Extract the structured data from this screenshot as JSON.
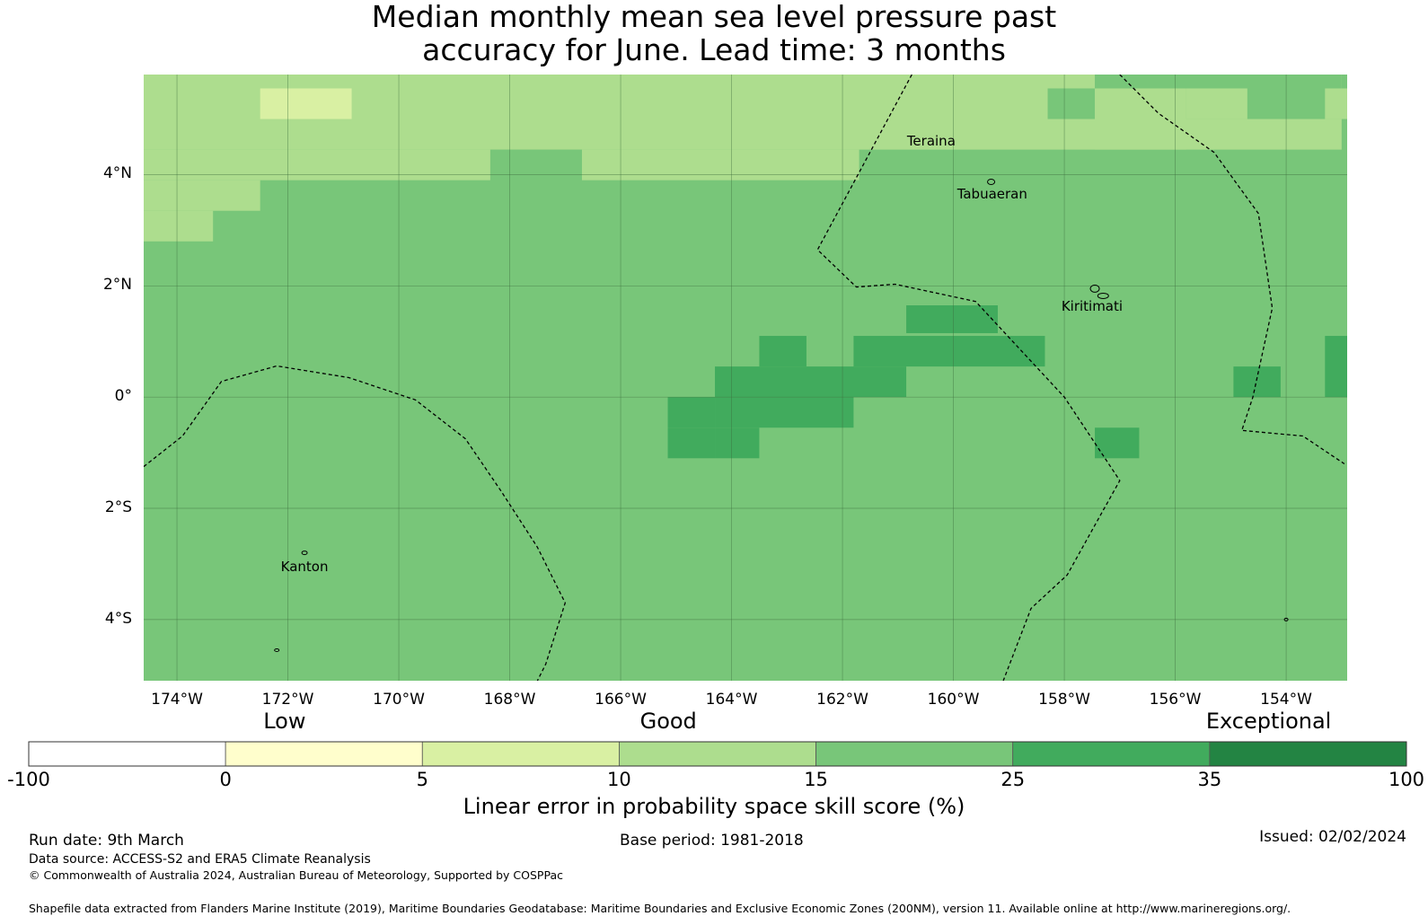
{
  "title_line1": "Median monthly mean sea level pressure past",
  "title_line2": "accuracy for June. Lead time: 3 months",
  "map": {
    "lon_range": [
      -174.6,
      -152.9
    ],
    "lat_range": [
      -5.1,
      5.8
    ],
    "lat_ticks": [
      {
        "value": 4,
        "label": "4°N"
      },
      {
        "value": 2,
        "label": "2°N"
      },
      {
        "value": 0,
        "label": "0°"
      },
      {
        "value": -2,
        "label": "2°S"
      },
      {
        "value": -4,
        "label": "4°S"
      }
    ],
    "lon_ticks": [
      {
        "value": -174,
        "label": "174°W"
      },
      {
        "value": -172,
        "label": "172°W"
      },
      {
        "value": -170,
        "label": "170°W"
      },
      {
        "value": -168,
        "label": "168°W"
      },
      {
        "value": -166,
        "label": "166°W"
      },
      {
        "value": -164,
        "label": "164°W"
      },
      {
        "value": -162,
        "label": "162°W"
      },
      {
        "value": -160,
        "label": "160°W"
      },
      {
        "value": -158,
        "label": "158°W"
      },
      {
        "value": -156,
        "label": "156°W"
      },
      {
        "value": -154,
        "label": "154°W"
      }
    ],
    "places": [
      {
        "name": "Teraina",
        "lon": -160.4,
        "lat": 4.6
      },
      {
        "name": "Tabuaeran",
        "lon": -159.3,
        "lat": 3.65
      },
      {
        "name": "Kiritimati",
        "lon": -157.5,
        "lat": 1.63
      },
      {
        "name": "Kanton",
        "lon": -171.7,
        "lat": -3.05
      }
    ],
    "base_level": "15-25",
    "cells": [
      {
        "lon": [
          -174.6,
          -153.0
        ],
        "lat": [
          4.45,
          5.8
        ],
        "level": "10-15"
      },
      {
        "lon": [
          -158.3,
          -157.45
        ],
        "lat": [
          5.0,
          5.55
        ],
        "level": "15-25"
      },
      {
        "lon": [
          -157.45,
          -153.0
        ],
        "lat": [
          5.0,
          5.8
        ],
        "level": "15-25"
      },
      {
        "lon": [
          -157.45,
          -155.8
        ],
        "lat": [
          4.45,
          5.55
        ],
        "level": "10-15"
      },
      {
        "lon": [
          -155.8,
          -154.7
        ],
        "lat": [
          5.0,
          5.55
        ],
        "level": "10-15"
      },
      {
        "lon": [
          -153.3,
          -152.9
        ],
        "lat": [
          5.0,
          5.55
        ],
        "level": "10-15"
      },
      {
        "lon": [
          -172.5,
          -170.85
        ],
        "lat": [
          5.0,
          5.55
        ],
        "level": "5-10"
      },
      {
        "lon": [
          -174.6,
          -168.35
        ],
        "lat": [
          3.9,
          4.45
        ],
        "level": "10-15"
      },
      {
        "lon": [
          -166.7,
          -161.7
        ],
        "lat": [
          3.9,
          4.45
        ],
        "level": "10-15"
      },
      {
        "lon": [
          -168.35,
          -166.7
        ],
        "lat": [
          3.9,
          4.45
        ],
        "level": "15-25"
      },
      {
        "lon": [
          -174.6,
          -172.5
        ],
        "lat": [
          3.35,
          3.9
        ],
        "level": "10-15"
      },
      {
        "lon": [
          -174.6,
          -173.35
        ],
        "lat": [
          2.8,
          3.35
        ],
        "level": "10-15"
      },
      {
        "lon": [
          -160.85,
          -159.2
        ],
        "lat": [
          1.15,
          1.65
        ],
        "level": "25-35"
      },
      {
        "lon": [
          -163.5,
          -162.65
        ],
        "lat": [
          0.55,
          1.1
        ],
        "level": "25-35"
      },
      {
        "lon": [
          -161.8,
          -158.35
        ],
        "lat": [
          0.55,
          1.1
        ],
        "level": "25-35"
      },
      {
        "lon": [
          -164.3,
          -160.85
        ],
        "lat": [
          0.0,
          0.55
        ],
        "level": "25-35"
      },
      {
        "lon": [
          -165.15,
          -164.3
        ],
        "lat": [
          -0.55,
          0.0
        ],
        "level": "25-35"
      },
      {
        "lon": [
          -164.3,
          -161.8
        ],
        "lat": [
          -0.55,
          0.0
        ],
        "level": "25-35"
      },
      {
        "lon": [
          -164.3,
          -165.15
        ],
        "lat": [
          -1.1,
          -0.55
        ],
        "level": "25-35"
      },
      {
        "lon": [
          -164.3,
          -163.5
        ],
        "lat": [
          -1.1,
          -0.55
        ],
        "level": "25-35"
      },
      {
        "lon": [
          -157.45,
          -156.65
        ],
        "lat": [
          -1.1,
          -0.55
        ],
        "level": "25-35"
      },
      {
        "lon": [
          -154.95,
          -154.1
        ],
        "lat": [
          0.0,
          0.55
        ],
        "level": "25-35"
      },
      {
        "lon": [
          -153.3,
          -152.9
        ],
        "lat": [
          0.0,
          1.1
        ],
        "level": "25-35"
      }
    ],
    "eez_boundaries": [
      [
        [
          -160.75,
          5.8
        ],
        [
          -162.45,
          2.65
        ],
        [
          -161.75,
          1.98
        ],
        [
          -161.05,
          2.03
        ],
        [
          -159.6,
          1.72
        ],
        [
          -158.0,
          0.0
        ],
        [
          -157.0,
          -1.5
        ],
        [
          -157.95,
          -3.2
        ],
        [
          -158.6,
          -3.8
        ],
        [
          -159.1,
          -5.1
        ]
      ],
      [
        [
          -157.0,
          5.8
        ],
        [
          -156.3,
          5.1
        ],
        [
          -155.3,
          4.4
        ],
        [
          -154.5,
          3.3
        ],
        [
          -154.25,
          1.6
        ],
        [
          -154.6,
          0.0
        ],
        [
          -154.8,
          -0.6
        ],
        [
          -153.7,
          -0.7
        ],
        [
          -152.95,
          -1.2
        ]
      ],
      [
        [
          -174.6,
          -1.25
        ],
        [
          -173.9,
          -0.7
        ],
        [
          -173.2,
          0.28
        ],
        [
          -172.2,
          0.56
        ],
        [
          -170.9,
          0.35
        ],
        [
          -169.7,
          -0.05
        ],
        [
          -168.8,
          -0.75
        ],
        [
          -168.15,
          -1.7
        ],
        [
          -167.5,
          -2.7
        ],
        [
          -167.0,
          -3.7
        ],
        [
          -167.35,
          -4.8
        ],
        [
          -167.5,
          -5.1
        ]
      ]
    ]
  },
  "colorbar": {
    "categories": [
      {
        "label": "Low",
        "value": 1.3
      },
      {
        "label": "Good",
        "value": 3.25
      },
      {
        "label": "Exceptional",
        "value": 6.3
      }
    ],
    "tick_labels": [
      "-100",
      "0",
      "5",
      "10",
      "15",
      "25",
      "35",
      "100"
    ],
    "bins": [
      {
        "range": "-100 to 0",
        "color": "#ffffff"
      },
      {
        "range": "0 to 5",
        "color": "#fffecc"
      },
      {
        "range": "5 to 10",
        "color": "#d9f0a3"
      },
      {
        "range": "10 to 15",
        "color": "#addd8e"
      },
      {
        "range": "15 to 25",
        "color": "#78c679"
      },
      {
        "range": "25 to 35",
        "color": "#41ab5d"
      },
      {
        "range": "35 to 100",
        "color": "#238443"
      }
    ],
    "label": "Linear error in probability space skill score (%)"
  },
  "level_colors": {
    "0-5": "#fffecc",
    "5-10": "#d9f0a3",
    "10-15": "#addd8e",
    "15-25": "#78c679",
    "25-35": "#41ab5d",
    "35-100": "#238443"
  },
  "footer": {
    "run_date": "Run date: 9th March",
    "base_period": "Base period: 1981-2018",
    "issued": "Issued: 02/02/2024",
    "data_source": "Data source: ACCESS-S2 and ERA5 Climate Reanalysis",
    "copyright": "© Commonwealth of Australia 2024, Australian Bureau of Meteorology, Supported by COSPPac",
    "shapefile": "Shapefile data extracted from Flanders Marine Institute (2019), Maritime Boundaries Geodatabase: Maritime Boundaries and Exclusive Economic Zones (200NM), version 11. Available online at http://www.marineregions.org/."
  }
}
